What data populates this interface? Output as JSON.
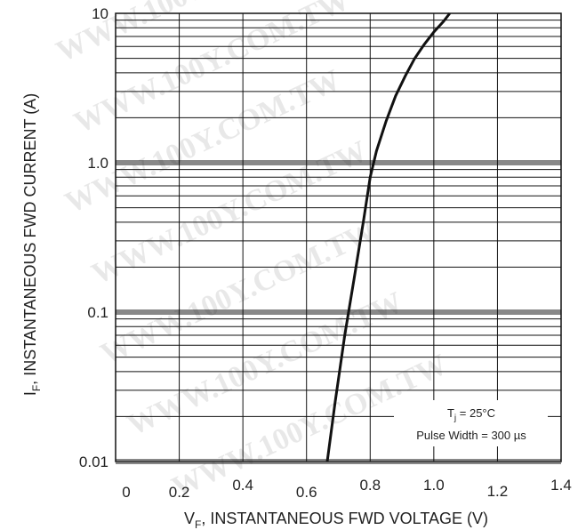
{
  "chart_data": {
    "type": "line",
    "scale": {
      "x": "linear",
      "y": "log"
    },
    "xlim": [
      0,
      1.4
    ],
    "ylim": [
      0.01,
      10
    ],
    "x_ticks": [
      0,
      0.2,
      0.4,
      0.6,
      0.8,
      1.0,
      1.2,
      1.4
    ],
    "x_tick_labels": [
      "0",
      "0.2",
      "0.4",
      "0.6",
      "0.8",
      "1.0",
      "1.2",
      "1.4"
    ],
    "y_ticks": [
      0.01,
      0.1,
      1.0,
      10
    ],
    "y_tick_labels": [
      "0.01",
      "0.1",
      "1.0",
      "10"
    ],
    "xlabel": {
      "main": "V",
      "sub": "F",
      "rest": ", INSTANTANEOUS FWD VOLTAGE (V)"
    },
    "ylabel": {
      "main": "I",
      "sub": "F",
      "rest": ", INSTANTANEOUS FWD CURRENT (A)"
    },
    "grid": true,
    "series": [
      {
        "color": "#111111",
        "x": [
          0.665,
          0.69,
          0.72,
          0.75,
          0.78,
          0.8,
          0.82,
          0.85,
          0.88,
          0.91,
          0.94,
          0.97,
          1.0,
          1.03,
          1.05
        ],
        "y": [
          0.01,
          0.025,
          0.07,
          0.17,
          0.42,
          0.8,
          1.2,
          1.9,
          2.8,
          3.8,
          5.0,
          6.2,
          7.5,
          8.8,
          10
        ]
      }
    ],
    "annotations": {
      "condition": {
        "main": "T",
        "sub": "j",
        "rest": " = 25°C"
      },
      "pulse": "Pulse Width = 300 µs",
      "placement": "bottom-right"
    },
    "watermark": "WWW.100Y.COM.TW"
  }
}
